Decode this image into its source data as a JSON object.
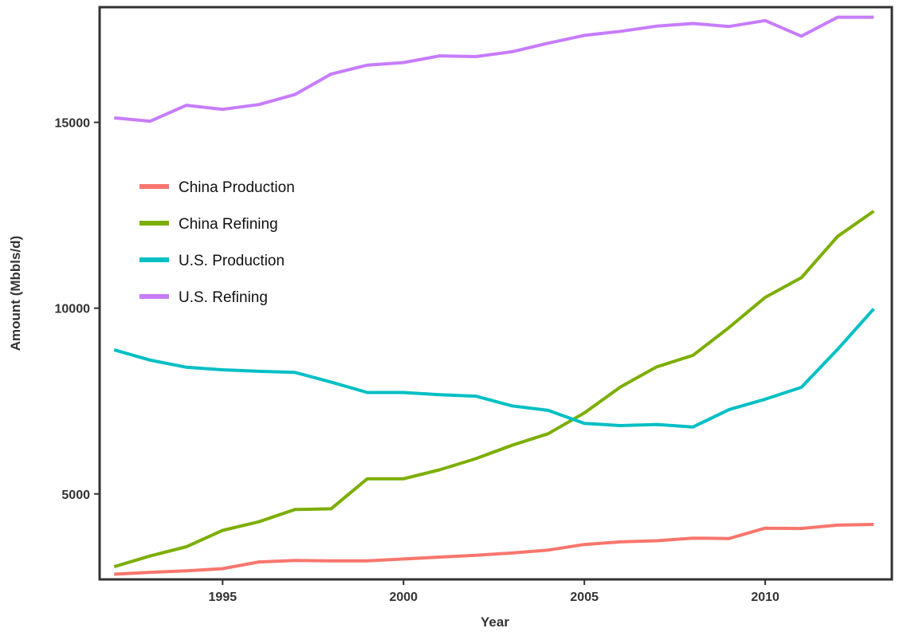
{
  "chart_data": {
    "type": "line",
    "title": "",
    "xlabel": "Year",
    "ylabel": "Amount (Mbbls/d)",
    "xlim": [
      1991.6,
      2013.5
    ],
    "ylim": [
      2700,
      18100
    ],
    "xticks": [
      1995,
      2000,
      2005,
      2010
    ],
    "yticks": [
      5000,
      10000,
      15000
    ],
    "x": [
      1992,
      1993,
      1994,
      1995,
      1996,
      1997,
      1998,
      1999,
      2000,
      2001,
      2002,
      2003,
      2004,
      2005,
      2006,
      2007,
      2008,
      2009,
      2010,
      2011,
      2012,
      2013
    ],
    "legend_position": "upper-left",
    "grid": false,
    "series": [
      {
        "name": "China Production",
        "color": "#F8766D",
        "values": [
          2840,
          2890,
          2930,
          2990,
          3170,
          3210,
          3200,
          3200,
          3250,
          3300,
          3350,
          3410,
          3490,
          3640,
          3710,
          3740,
          3810,
          3800,
          4080,
          4070,
          4160,
          4180
        ]
      },
      {
        "name": "China Refining",
        "color": "#7CAE00",
        "values": [
          3040,
          3330,
          3580,
          4020,
          4250,
          4580,
          4600,
          5410,
          5410,
          5650,
          5950,
          6310,
          6620,
          7180,
          7880,
          8420,
          8730,
          9480,
          10290,
          10820,
          11930,
          12610
        ]
      },
      {
        "name": "U.S. Production",
        "color": "#00BFC4",
        "values": [
          8880,
          8600,
          8410,
          8340,
          8300,
          8270,
          8010,
          7730,
          7730,
          7670,
          7630,
          7370,
          7250,
          6900,
          6840,
          6870,
          6800,
          7270,
          7550,
          7870,
          8890,
          9980
        ]
      },
      {
        "name": "U.S. Refining",
        "color": "#C77CFF",
        "values": [
          15120,
          15030,
          15460,
          15350,
          15480,
          15750,
          16300,
          16540,
          16610,
          16790,
          16770,
          16900,
          17130,
          17340,
          17450,
          17590,
          17660,
          17580,
          17740,
          17320,
          17830,
          17830
        ]
      }
    ]
  }
}
